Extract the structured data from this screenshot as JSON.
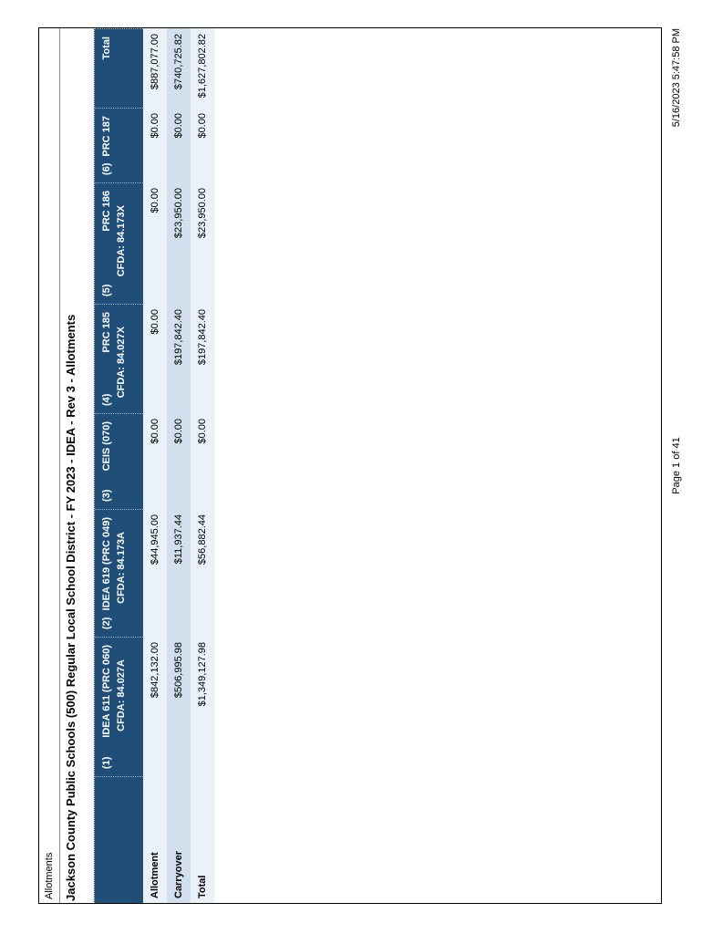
{
  "page_header": "Allotments",
  "title": "Jackson County Public Schools (500) Regular Local School District - FY 2023 - IDEA - Rev 3 - Allotments",
  "table": {
    "columns": [
      {
        "num": "(1)",
        "name": "IDEA 611 (PRC 060)",
        "cfda": "CFDA: 84.027A"
      },
      {
        "num": "(2)",
        "name": "IDEA 619 (PRC 049)",
        "cfda": "CFDA: 84.173A"
      },
      {
        "num": "(3)",
        "name": "CEIS (070)",
        "cfda": ""
      },
      {
        "num": "(4)",
        "name": "PRC 185",
        "cfda": "CFDA: 84.027X"
      },
      {
        "num": "(5)",
        "name": "PRC 186",
        "cfda": "CFDA: 84.173X"
      },
      {
        "num": "(6)",
        "name": "PRC 187",
        "cfda": ""
      },
      {
        "num": "",
        "name": "Total",
        "cfda": ""
      }
    ],
    "rows": [
      {
        "label": "Allotment",
        "values": [
          "$842,132.00",
          "$44,945.00",
          "$0.00",
          "$0.00",
          "$0.00",
          "$0.00",
          "$887,077.00"
        ]
      },
      {
        "label": "Carryover",
        "values": [
          "$506,995.98",
          "$11,937.44",
          "$0.00",
          "$197,842.40",
          "$23,950.00",
          "$0.00",
          "$740,725.82"
        ]
      },
      {
        "label": "Total",
        "values": [
          "$1,349,127.98",
          "$56,882.44",
          "$0.00",
          "$197,842.40",
          "$23,950.00",
          "$0.00",
          "$1,627,802.82"
        ]
      }
    ]
  },
  "footer": {
    "page": "Page 1 of 41",
    "timestamp": "5/16/2023 5:47:58 PM"
  },
  "colors": {
    "header_background": "#1F4E79",
    "header_text": "#FFFFFF",
    "row_pale": "#EAF1F9",
    "row_highlight": "#D2E0EE",
    "border": "#000000",
    "header_rule": "#8A8A8A"
  },
  "orientation": "landscape page rotated 90 degrees counter-clockwise"
}
